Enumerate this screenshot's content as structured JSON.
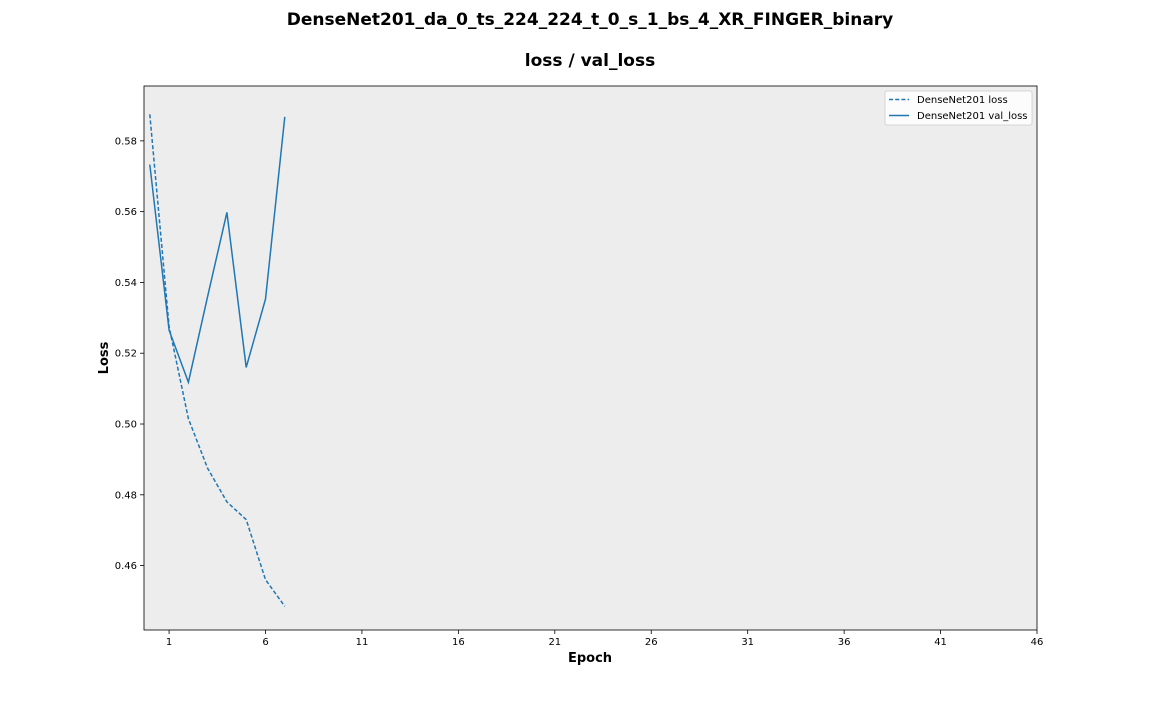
{
  "figure": {
    "suptitle": "DenseNet201_da_0_ts_224_224_t_0_s_1_bs_4_XR_FINGER_binary"
  },
  "chart_data": {
    "type": "line",
    "title": "loss / val_loss",
    "xlabel": "Epoch",
    "ylabel": "Loss",
    "xlim": [
      -0.3,
      46
    ],
    "ylim": [
      0.4418,
      0.5955
    ],
    "xticks": [
      1,
      6,
      11,
      16,
      21,
      26,
      31,
      36,
      41,
      46
    ],
    "yticks": [
      0.46,
      0.48,
      0.5,
      0.52,
      0.54,
      0.56,
      0.58
    ],
    "x": [
      0,
      1,
      2,
      3,
      4,
      5,
      6,
      7
    ],
    "series": [
      {
        "name": "DenseNet201 loss",
        "style": "dashed",
        "color": "#1f77b4",
        "values": [
          0.5875,
          0.5275,
          0.5015,
          0.4875,
          0.478,
          0.473,
          0.456,
          0.4485
        ]
      },
      {
        "name": "DenseNet201 val_loss",
        "style": "solid",
        "color": "#1f77b4",
        "values": [
          0.5733,
          0.5265,
          0.5118,
          0.536,
          0.5598,
          0.516,
          0.5353,
          0.5868
        ]
      }
    ],
    "grid": false,
    "legend_position": "top-right",
    "background": "#ededed"
  }
}
